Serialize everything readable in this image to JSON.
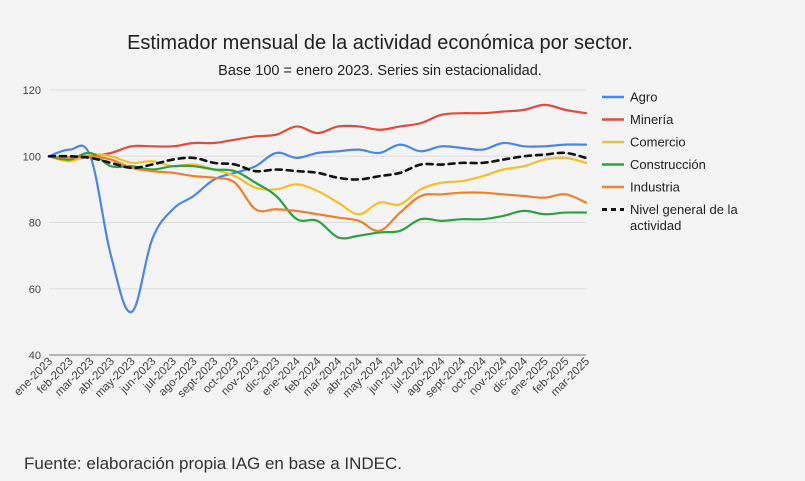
{
  "chart_data": {
    "type": "line",
    "title": "Estimador mensual de la actividad económica por sector.",
    "subtitle": "Base 100 = enero 2023. Series sin estacionalidad.",
    "xlabel": "",
    "ylabel": "",
    "ylim": [
      40,
      120
    ],
    "yticks": [
      40,
      60,
      80,
      100,
      120
    ],
    "grid": true,
    "legend_position": "right",
    "categories": [
      "ene-2023",
      "feb-2023",
      "mar-2023",
      "abr-2023",
      "may-2023",
      "jun-2023",
      "jul-2023",
      "ago-2023",
      "sept-2023",
      "oct-2023",
      "nov-2023",
      "dic-2023",
      "ene-2024",
      "feb-2024",
      "mar-2024",
      "abr-2024",
      "may-2024",
      "jun-2024",
      "jul-2024",
      "ago-2024",
      "sept-2024",
      "oct-2024",
      "nov-2024",
      "dic-2024",
      "ene-2025",
      "feb-2025",
      "mar-2025"
    ],
    "series": [
      {
        "name": "Agro",
        "color": "#4a86e8",
        "dash": false,
        "values": [
          100,
          102,
          100,
          70,
          53,
          75,
          84,
          88,
          93,
          95,
          97,
          101,
          99.5,
          101,
          101.5,
          102,
          101,
          103.5,
          101.5,
          103,
          102.5,
          102,
          104,
          103,
          103,
          103.5,
          103.5
        ]
      },
      {
        "name": "Minería",
        "color": "#e24a3b",
        "dash": false,
        "values": [
          100,
          99,
          100,
          101,
          103,
          103,
          103,
          104,
          104,
          105,
          106,
          106.5,
          109,
          107,
          109,
          109,
          108,
          109,
          110,
          112.5,
          113,
          113,
          113.5,
          114,
          115.5,
          114,
          113
        ]
      },
      {
        "name": "Comercio",
        "color": "#f6be2c",
        "dash": false,
        "values": [
          100,
          98.5,
          100.5,
          100,
          98,
          98.5,
          97,
          97.5,
          96,
          94,
          90.5,
          90,
          91.5,
          89.5,
          86,
          82.5,
          86,
          85.5,
          90,
          92,
          92.5,
          94,
          96,
          97,
          99,
          99.5,
          98
        ]
      },
      {
        "name": "Construcción",
        "color": "#2ea044",
        "dash": false,
        "values": [
          100,
          99,
          101,
          97,
          97,
          96,
          97,
          97,
          96,
          95.5,
          92,
          88,
          81,
          80.5,
          75.5,
          76,
          77,
          77.5,
          81,
          80.5,
          81,
          81,
          82,
          83.5,
          82.5,
          83,
          83
        ]
      },
      {
        "name": "Industria",
        "color": "#f07f2a",
        "dash": false,
        "values": [
          100,
          99.5,
          100,
          99,
          96.5,
          95.5,
          95,
          94,
          93.5,
          92,
          84,
          84,
          83.5,
          82.5,
          81.5,
          80.5,
          77.5,
          83,
          88,
          88.5,
          89,
          89,
          88.5,
          88,
          87.5,
          88.5,
          86
        ]
      },
      {
        "name": "Nivel general de la actividad",
        "color": "#111111",
        "dash": true,
        "values": [
          100,
          100,
          99.5,
          98,
          96.5,
          97.5,
          99,
          99.5,
          98,
          97.5,
          95.5,
          96,
          95.5,
          95,
          93.5,
          93,
          94,
          95,
          97.5,
          97.5,
          98,
          98,
          99,
          100,
          100.5,
          101,
          99.5
        ]
      }
    ]
  },
  "source_text": "Fuente: elaboración propia IAG en base a INDEC."
}
